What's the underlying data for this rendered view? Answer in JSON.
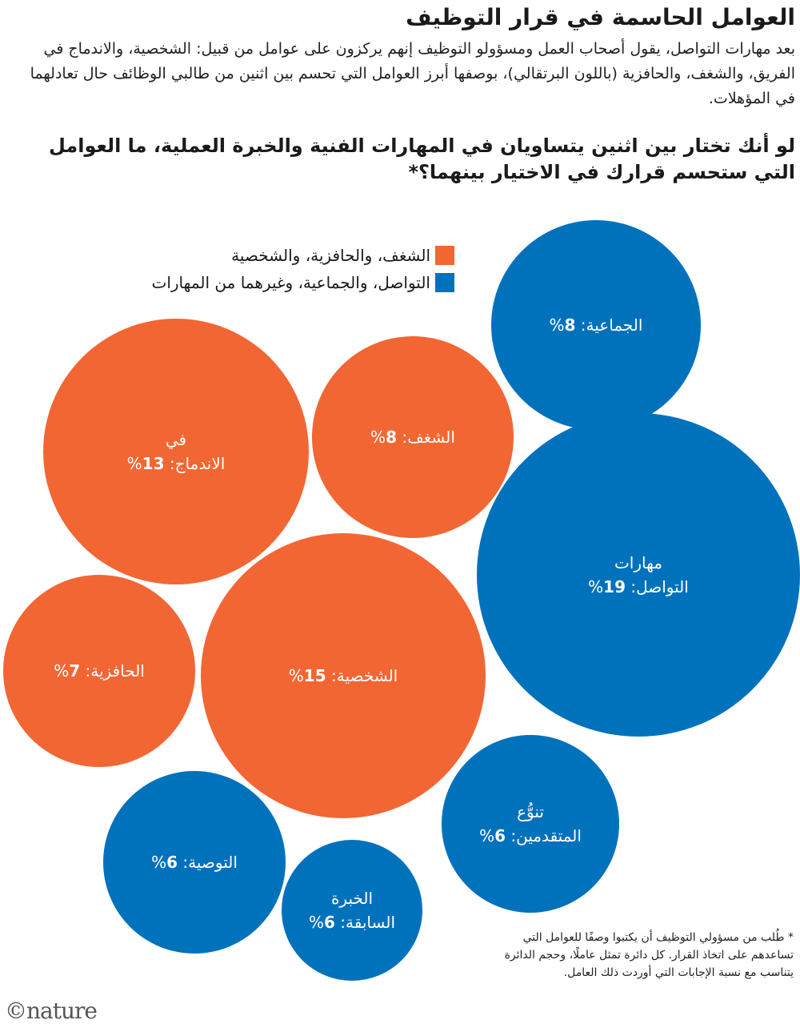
{
  "title": "العوامل الحاسمة في قرار التوظيف",
  "intro": "بعد مهارات التواصل، يقول أصحاب العمل ومسؤولو التوظيف إنهم يركزون على عوامل من قبيل: الشخصية، والاندماج في الفريق، والشغف، والحافزية (باللون البرتقالي)، بوصفها أبرز العوامل التي تحسم بين اثنين من طالبي الوظائف حال تعادلهما في المؤهلات.",
  "question": "لو أنك تختار بين اثنين يتساويان في المهارات الفنية والخبرة العملية، ما العوامل التي ستحسم قرارك في الاختيار بينهما؟*",
  "legend": [
    {
      "label": "الشغف، والحافزية، والشخصية",
      "color": "#f26633"
    },
    {
      "label": "التواصل، والجماعية، وغيرهما من المهارات",
      "color": "#0072bc"
    }
  ],
  "chart_data": {
    "type": "bubble",
    "unit": "%",
    "items": [
      {
        "label": "الجماعية",
        "value": 8,
        "group": "التواصل، والجماعية، وغيرهما من المهارات",
        "color": "#0072bc"
      },
      {
        "label": "الاندماج في الفريق",
        "value": 13,
        "group": "الشغف، والحافزية، والشخصية",
        "color": "#f26633"
      },
      {
        "label": "الشغف",
        "value": 8,
        "group": "الشغف، والحافزية، والشخصية",
        "color": "#f26633"
      },
      {
        "label": "مهارات التواصل",
        "value": 19,
        "group": "التواصل، والجماعية، وغيرهما من المهارات",
        "color": "#0072bc"
      },
      {
        "label": "الحافزية",
        "value": 7,
        "group": "الشغف، والحافزية، والشخصية",
        "color": "#f26633"
      },
      {
        "label": "الشخصية",
        "value": 15,
        "group": "الشغف، والحافزية، والشخصية",
        "color": "#f26633"
      },
      {
        "label": "تنوُّع المتقدمين",
        "value": 6,
        "group": "التواصل، والجماعية، وغيرهما من المهارات",
        "color": "#0072bc"
      },
      {
        "label": "التوصية",
        "value": 6,
        "group": "التواصل، والجماعية، وغيرهما من المهارات",
        "color": "#0072bc"
      },
      {
        "label": "الخبرة السابقة",
        "value": 6,
        "group": "التواصل، والجماعية، وغيرهما من المهارات",
        "color": "#0072bc"
      }
    ]
  },
  "footnote": "* طُلب من مسؤولي التوظيف أن يكتبوا وصفًا للعوامل التي تساعدهم على اتخاذ القرار. كل دائرة تمثل عاملًا، وحجم الدائرة يتناسب مع نسبة الإجابات التي أوردت ذلك العامل.",
  "logo": "©nature"
}
